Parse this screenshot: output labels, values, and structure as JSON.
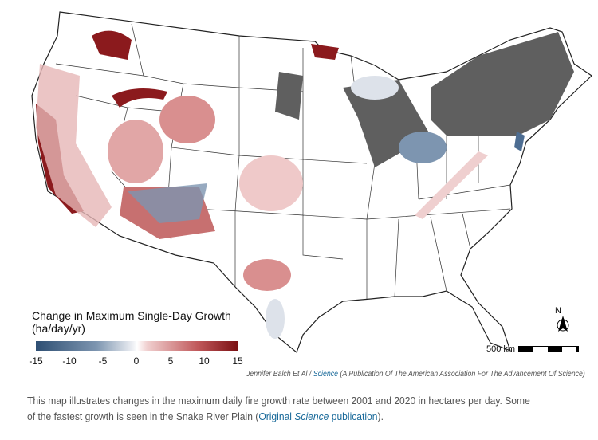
{
  "legend": {
    "title": "Change in Maximum Single-Day Growth",
    "units": "(ha/day/yr)",
    "ticks": [
      "-15",
      "-10",
      "-5",
      "0",
      "5",
      "10",
      "15"
    ],
    "range": [
      -15,
      15
    ],
    "colors": {
      "low": "#2e4f73",
      "mid": "#ffffff",
      "high": "#7a0f12"
    }
  },
  "scale_label": "500 km",
  "north_label": "N",
  "credit": {
    "author": "Jennifer Balch Et Al",
    "sep": "/",
    "source_link": "Science",
    "source_desc": "(A Publication Of The American Association For The Advancement Of Science)"
  },
  "caption": {
    "text": "This map illustrates changes in the maximum daily fire growth rate between 2001 and 2020 in hectares per day. Some of the fastest growth is seen in the Snake River Plain (",
    "link_a": "Original ",
    "link_b": "Science",
    "link_c": " publication",
    "end": ")."
  }
}
